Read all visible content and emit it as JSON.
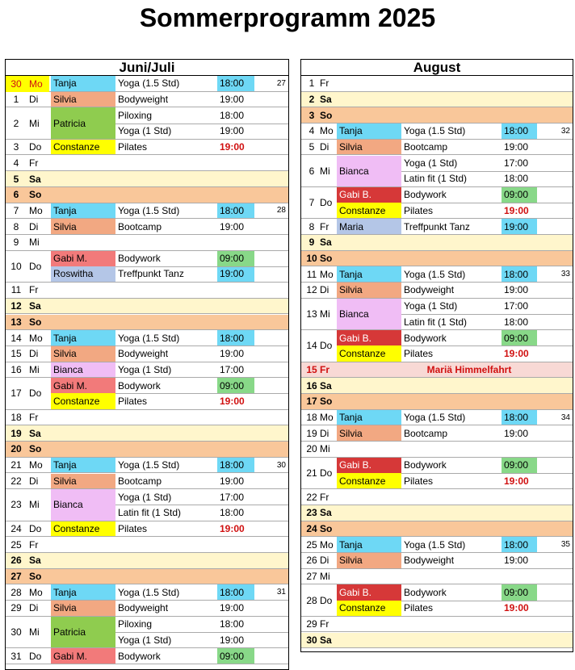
{
  "title": "Sommerprogramm 2025",
  "colors": {
    "Tanja": "#6ed8f5",
    "Silvia": "#f2a882",
    "Patricia": "#8fcc4f",
    "Constanze": "#ffff00",
    "Gabi M.": "#f27a7a",
    "Gabi B.": "#d63838",
    "Roswitha": "#b4c6e7",
    "Bianca": "#f0bdf5",
    "Maria": "#b4c6e7",
    "time_blue": "#6ed8f5",
    "time_green": "#88d888",
    "today_yellow": "#ffff00"
  },
  "left": {
    "header": "Juni/Juli",
    "rows": [
      {
        "n": "30",
        "d": "Mo",
        "today": true,
        "s": [
          {
            "who": "Tanja",
            "what": "Yoga (1.5 Std)",
            "time": "18:00",
            "tc": "blue"
          }
        ],
        "wk": "27"
      },
      {
        "n": "1",
        "d": "Di",
        "s": [
          {
            "who": "Silvia",
            "what": "Bodyweight",
            "time": "19:00"
          }
        ]
      },
      {
        "n": "2",
        "d": "Mi",
        "merged": "Patricia",
        "s": [
          {
            "who": "Patricia",
            "what": "Piloxing",
            "time": "18:00"
          },
          {
            "who": "",
            "what": "Yoga (1 Std)",
            "time": "19:00"
          }
        ]
      },
      {
        "n": "3",
        "d": "Do",
        "s": [
          {
            "who": "Constanze",
            "what": "Pilates",
            "time": "19:00",
            "tc": "red"
          }
        ]
      },
      {
        "n": "4",
        "d": "Fr"
      },
      {
        "n": "5",
        "d": "Sa",
        "type": "sa"
      },
      {
        "n": "6",
        "d": "So",
        "type": "so"
      },
      {
        "n": "7",
        "d": "Mo",
        "s": [
          {
            "who": "Tanja",
            "what": "Yoga (1.5 Std)",
            "time": "18:00",
            "tc": "blue"
          }
        ],
        "wk": "28"
      },
      {
        "n": "8",
        "d": "Di",
        "s": [
          {
            "who": "Silvia",
            "what": "Bootcamp",
            "time": "19:00"
          }
        ]
      },
      {
        "n": "9",
        "d": "Mi"
      },
      {
        "n": "10",
        "d": "Do",
        "s": [
          {
            "who": "Gabi M.",
            "what": "Bodywork",
            "time": "09:00",
            "tc": "green"
          },
          {
            "who": "Roswitha",
            "what": "Treffpunkt Tanz",
            "time": "19:00",
            "tc": "blue"
          }
        ]
      },
      {
        "n": "11",
        "d": "Fr"
      },
      {
        "n": "12",
        "d": "Sa",
        "type": "sa"
      },
      {
        "n": "13",
        "d": "So",
        "type": "so"
      },
      {
        "n": "14",
        "d": "Mo",
        "s": [
          {
            "who": "Tanja",
            "what": "Yoga (1.5 Std)",
            "time": "18:00",
            "tc": "blue"
          }
        ]
      },
      {
        "n": "15",
        "d": "Di",
        "s": [
          {
            "who": "Silvia",
            "what": "Bodyweight",
            "time": "19:00"
          }
        ]
      },
      {
        "n": "16",
        "d": "Mi",
        "s": [
          {
            "who": "Bianca",
            "what": "Yoga (1 Std)",
            "time": "17:00"
          }
        ]
      },
      {
        "n": "17",
        "d": "Do",
        "s": [
          {
            "who": "Gabi M.",
            "what": "Bodywork",
            "time": "09:00",
            "tc": "green"
          },
          {
            "who": "Constanze",
            "what": "Pilates",
            "time": "19:00",
            "tc": "red"
          }
        ]
      },
      {
        "n": "18",
        "d": "Fr"
      },
      {
        "n": "19",
        "d": "Sa",
        "type": "sa"
      },
      {
        "n": "20",
        "d": "So",
        "type": "so"
      },
      {
        "n": "21",
        "d": "Mo",
        "s": [
          {
            "who": "Tanja",
            "what": "Yoga (1.5 Std)",
            "time": "18:00",
            "tc": "blue"
          }
        ],
        "wk": "30"
      },
      {
        "n": "22",
        "d": "Di",
        "s": [
          {
            "who": "Silvia",
            "what": "Bootcamp",
            "time": "19:00"
          }
        ]
      },
      {
        "n": "23",
        "d": "Mi",
        "merged": "Bianca",
        "s": [
          {
            "who": "Bianca",
            "what": "Yoga (1 Std)",
            "time": "17:00"
          },
          {
            "who": "",
            "what": "Latin fit (1 Std)",
            "time": "18:00"
          }
        ]
      },
      {
        "n": "24",
        "d": "Do",
        "s": [
          {
            "who": "Constanze",
            "what": "Pilates",
            "time": "19:00",
            "tc": "red"
          }
        ]
      },
      {
        "n": "25",
        "d": "Fr"
      },
      {
        "n": "26",
        "d": "Sa",
        "type": "sa"
      },
      {
        "n": "27",
        "d": "So",
        "type": "so"
      },
      {
        "n": "28",
        "d": "Mo",
        "s": [
          {
            "who": "Tanja",
            "what": "Yoga (1.5 Std)",
            "time": "18:00",
            "tc": "blue"
          }
        ],
        "wk": "31"
      },
      {
        "n": "29",
        "d": "Di",
        "s": [
          {
            "who": "Silvia",
            "what": "Bodyweight",
            "time": "19:00"
          }
        ]
      },
      {
        "n": "30",
        "d": "Mi",
        "merged": "Patricia",
        "s": [
          {
            "who": "Patricia",
            "what": "Piloxing",
            "time": "18:00"
          },
          {
            "who": "",
            "what": "Yoga (1 Std)",
            "time": "19:00"
          }
        ]
      },
      {
        "n": "31",
        "d": "Do",
        "s": [
          {
            "who": "Gabi M.",
            "what": "Bodywork",
            "time": "09:00",
            "tc": "green"
          }
        ]
      }
    ]
  },
  "right": {
    "header": "August",
    "rows": [
      {
        "n": "1",
        "d": "Fr"
      },
      {
        "n": "2",
        "d": "Sa",
        "type": "sa"
      },
      {
        "n": "3",
        "d": "So",
        "type": "so"
      },
      {
        "n": "4",
        "d": "Mo",
        "s": [
          {
            "who": "Tanja",
            "what": "Yoga (1.5 Std)",
            "time": "18:00",
            "tc": "blue"
          }
        ],
        "wk": "32"
      },
      {
        "n": "5",
        "d": "Di",
        "s": [
          {
            "who": "Silvia",
            "what": "Bootcamp",
            "time": "19:00"
          }
        ]
      },
      {
        "n": "6",
        "d": "Mi",
        "merged": "Bianca",
        "s": [
          {
            "who": "Bianca",
            "what": "Yoga (1 Std)",
            "time": "17:00"
          },
          {
            "who": "",
            "what": "Latin fit (1 Std)",
            "time": "18:00"
          }
        ]
      },
      {
        "n": "7",
        "d": "Do",
        "s": [
          {
            "who": "Gabi B.",
            "what": "Bodywork",
            "time": "09:00",
            "tc": "green"
          },
          {
            "who": "Constanze",
            "what": "Pilates",
            "time": "19:00",
            "tc": "red"
          }
        ]
      },
      {
        "n": "8",
        "d": "Fr",
        "s": [
          {
            "who": "Maria",
            "what": "Treffpunkt Tanz",
            "time": "19:00",
            "tc": "blue"
          }
        ]
      },
      {
        "n": "9",
        "d": "Sa",
        "type": "sa"
      },
      {
        "n": "10",
        "d": "So",
        "type": "so"
      },
      {
        "n": "11",
        "d": "Mo",
        "s": [
          {
            "who": "Tanja",
            "what": "Yoga (1.5 Std)",
            "time": "18:00",
            "tc": "blue"
          }
        ],
        "wk": "33"
      },
      {
        "n": "12",
        "d": "Di",
        "s": [
          {
            "who": "Silvia",
            "what": "Bodyweight",
            "time": "19:00"
          }
        ]
      },
      {
        "n": "13",
        "d": "Mi",
        "merged": "Bianca",
        "s": [
          {
            "who": "Bianca",
            "what": "Yoga (1 Std)",
            "time": "17:00"
          },
          {
            "who": "",
            "what": "Latin fit (1 Std)",
            "time": "18:00"
          }
        ]
      },
      {
        "n": "14",
        "d": "Do",
        "s": [
          {
            "who": "Gabi B.",
            "what": "Bodywork",
            "time": "09:00",
            "tc": "green"
          },
          {
            "who": "Constanze",
            "what": "Pilates",
            "time": "19:00",
            "tc": "red"
          }
        ]
      },
      {
        "n": "15",
        "d": "Fr",
        "type": "hol",
        "holiday": "Mariä Himmelfahrt"
      },
      {
        "n": "16",
        "d": "Sa",
        "type": "sa"
      },
      {
        "n": "17",
        "d": "So",
        "type": "so"
      },
      {
        "n": "18",
        "d": "Mo",
        "s": [
          {
            "who": "Tanja",
            "what": "Yoga (1.5 Std)",
            "time": "18:00",
            "tc": "blue"
          }
        ],
        "wk": "34"
      },
      {
        "n": "19",
        "d": "Di",
        "s": [
          {
            "who": "Silvia",
            "what": "Bootcamp",
            "time": "19:00"
          }
        ]
      },
      {
        "n": "20",
        "d": "Mi"
      },
      {
        "n": "21",
        "d": "Do",
        "s": [
          {
            "who": "Gabi B.",
            "what": "Bodywork",
            "time": "09:00",
            "tc": "green"
          },
          {
            "who": "Constanze",
            "what": "Pilates",
            "time": "19:00",
            "tc": "red"
          }
        ]
      },
      {
        "n": "22",
        "d": "Fr"
      },
      {
        "n": "23",
        "d": "Sa",
        "type": "sa"
      },
      {
        "n": "24",
        "d": "So",
        "type": "so"
      },
      {
        "n": "25",
        "d": "Mo",
        "s": [
          {
            "who": "Tanja",
            "what": "Yoga (1.5 Std)",
            "time": "18:00",
            "tc": "blue"
          }
        ],
        "wk": "35"
      },
      {
        "n": "26",
        "d": "Di",
        "s": [
          {
            "who": "Silvia",
            "what": "Bodyweight",
            "time": "19:00"
          }
        ]
      },
      {
        "n": "27",
        "d": "Mi"
      },
      {
        "n": "28",
        "d": "Do",
        "s": [
          {
            "who": "Gabi B.",
            "what": "Bodywork",
            "time": "09:00",
            "tc": "green"
          },
          {
            "who": "Constanze",
            "what": "Pilates",
            "time": "19:00",
            "tc": "red"
          }
        ]
      },
      {
        "n": "29",
        "d": "Fr"
      },
      {
        "n": "30",
        "d": "Sa",
        "type": "sa"
      }
    ]
  }
}
